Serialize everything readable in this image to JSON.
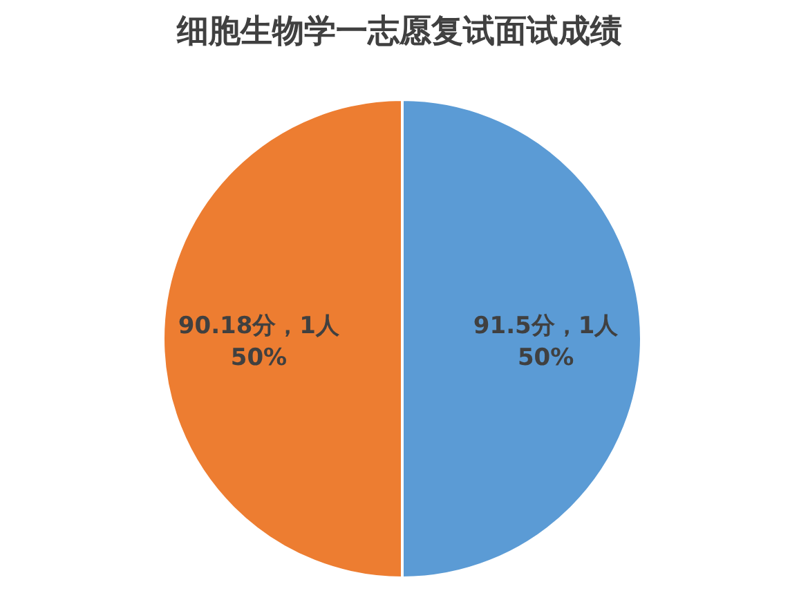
{
  "chart_data": {
    "type": "pie",
    "title": "细胞生物学一志愿复试面试成绩",
    "categories": [
      "91.5分，1人",
      "90.18分，1人"
    ],
    "values": [
      50,
      50
    ],
    "colors": [
      "#5b9bd5",
      "#ed7d31"
    ],
    "value_labels": [
      "50%",
      "50%"
    ],
    "legend": false
  }
}
